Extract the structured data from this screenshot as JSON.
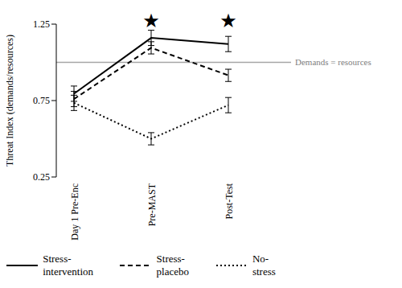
{
  "chart_data": {
    "type": "line",
    "y_label": "Threat Index (demands/resources)",
    "categories": [
      "Day 1 Pre-Enc",
      "Pre-MAST",
      "Post-Test"
    ],
    "series": [
      {
        "name": "Stress-intervention",
        "color": "#000000",
        "line_style": "solid",
        "values": [
          0.795,
          1.16,
          1.12
        ],
        "errors": [
          0.05,
          0.05,
          0.05
        ]
      },
      {
        "name": "Stress-placebo",
        "color": "#000000",
        "line_style": "dashed",
        "values": [
          0.76,
          1.095,
          0.915
        ],
        "errors": [
          0.05,
          0.04,
          0.04
        ]
      },
      {
        "name": "No-stress",
        "color": "#000000",
        "line_style": "dotted",
        "values": [
          0.735,
          0.5,
          0.72
        ],
        "errors": [
          0.05,
          0.04,
          0.05
        ]
      }
    ],
    "ylim": [
      0.25,
      1.25
    ],
    "yticks": [
      0.25,
      0.75,
      1.25
    ],
    "grid": false,
    "legend": "bottom",
    "reference_lines": [
      {
        "value": 1,
        "label": "Demands = resources",
        "color": "#a6a6a6"
      }
    ],
    "annotations": [
      {
        "text": "★",
        "category": "Pre-MAST"
      },
      {
        "text": "★",
        "category": "Post-Test"
      }
    ]
  }
}
